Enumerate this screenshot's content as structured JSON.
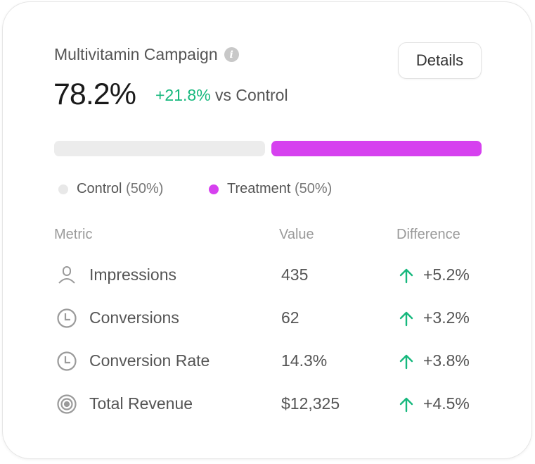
{
  "card": {
    "title": "Multivitamin Campaign",
    "info_icon": "info-icon",
    "details_label": "Details",
    "headline_value": "78.2%",
    "delta_value": "+21.8%",
    "delta_suffix": "vs Control",
    "colors": {
      "positive": "#16b87d",
      "control": "#ececec",
      "treatment": "#d641ef"
    }
  },
  "split": {
    "control_share_percent": 50,
    "treatment_share_percent": 50
  },
  "legend": [
    {
      "label": "Control",
      "pct": "(50%)"
    },
    {
      "label": "Treatment",
      "pct": "(50%)"
    }
  ],
  "table": {
    "headers": [
      "Metric",
      "Value",
      "Difference"
    ],
    "rows": [
      {
        "icon": "user-icon",
        "metric": "Impressions",
        "value": "435",
        "difference": "+5.2%"
      },
      {
        "icon": "clock-icon",
        "metric": "Conversions",
        "value": "62",
        "difference": "+3.2%"
      },
      {
        "icon": "clock-icon",
        "metric": "Conversion Rate",
        "value": "14.3%",
        "difference": "+3.8%"
      },
      {
        "icon": "target-icon",
        "metric": "Total Revenue",
        "value": "$12,325",
        "difference": "+4.5%"
      }
    ]
  }
}
